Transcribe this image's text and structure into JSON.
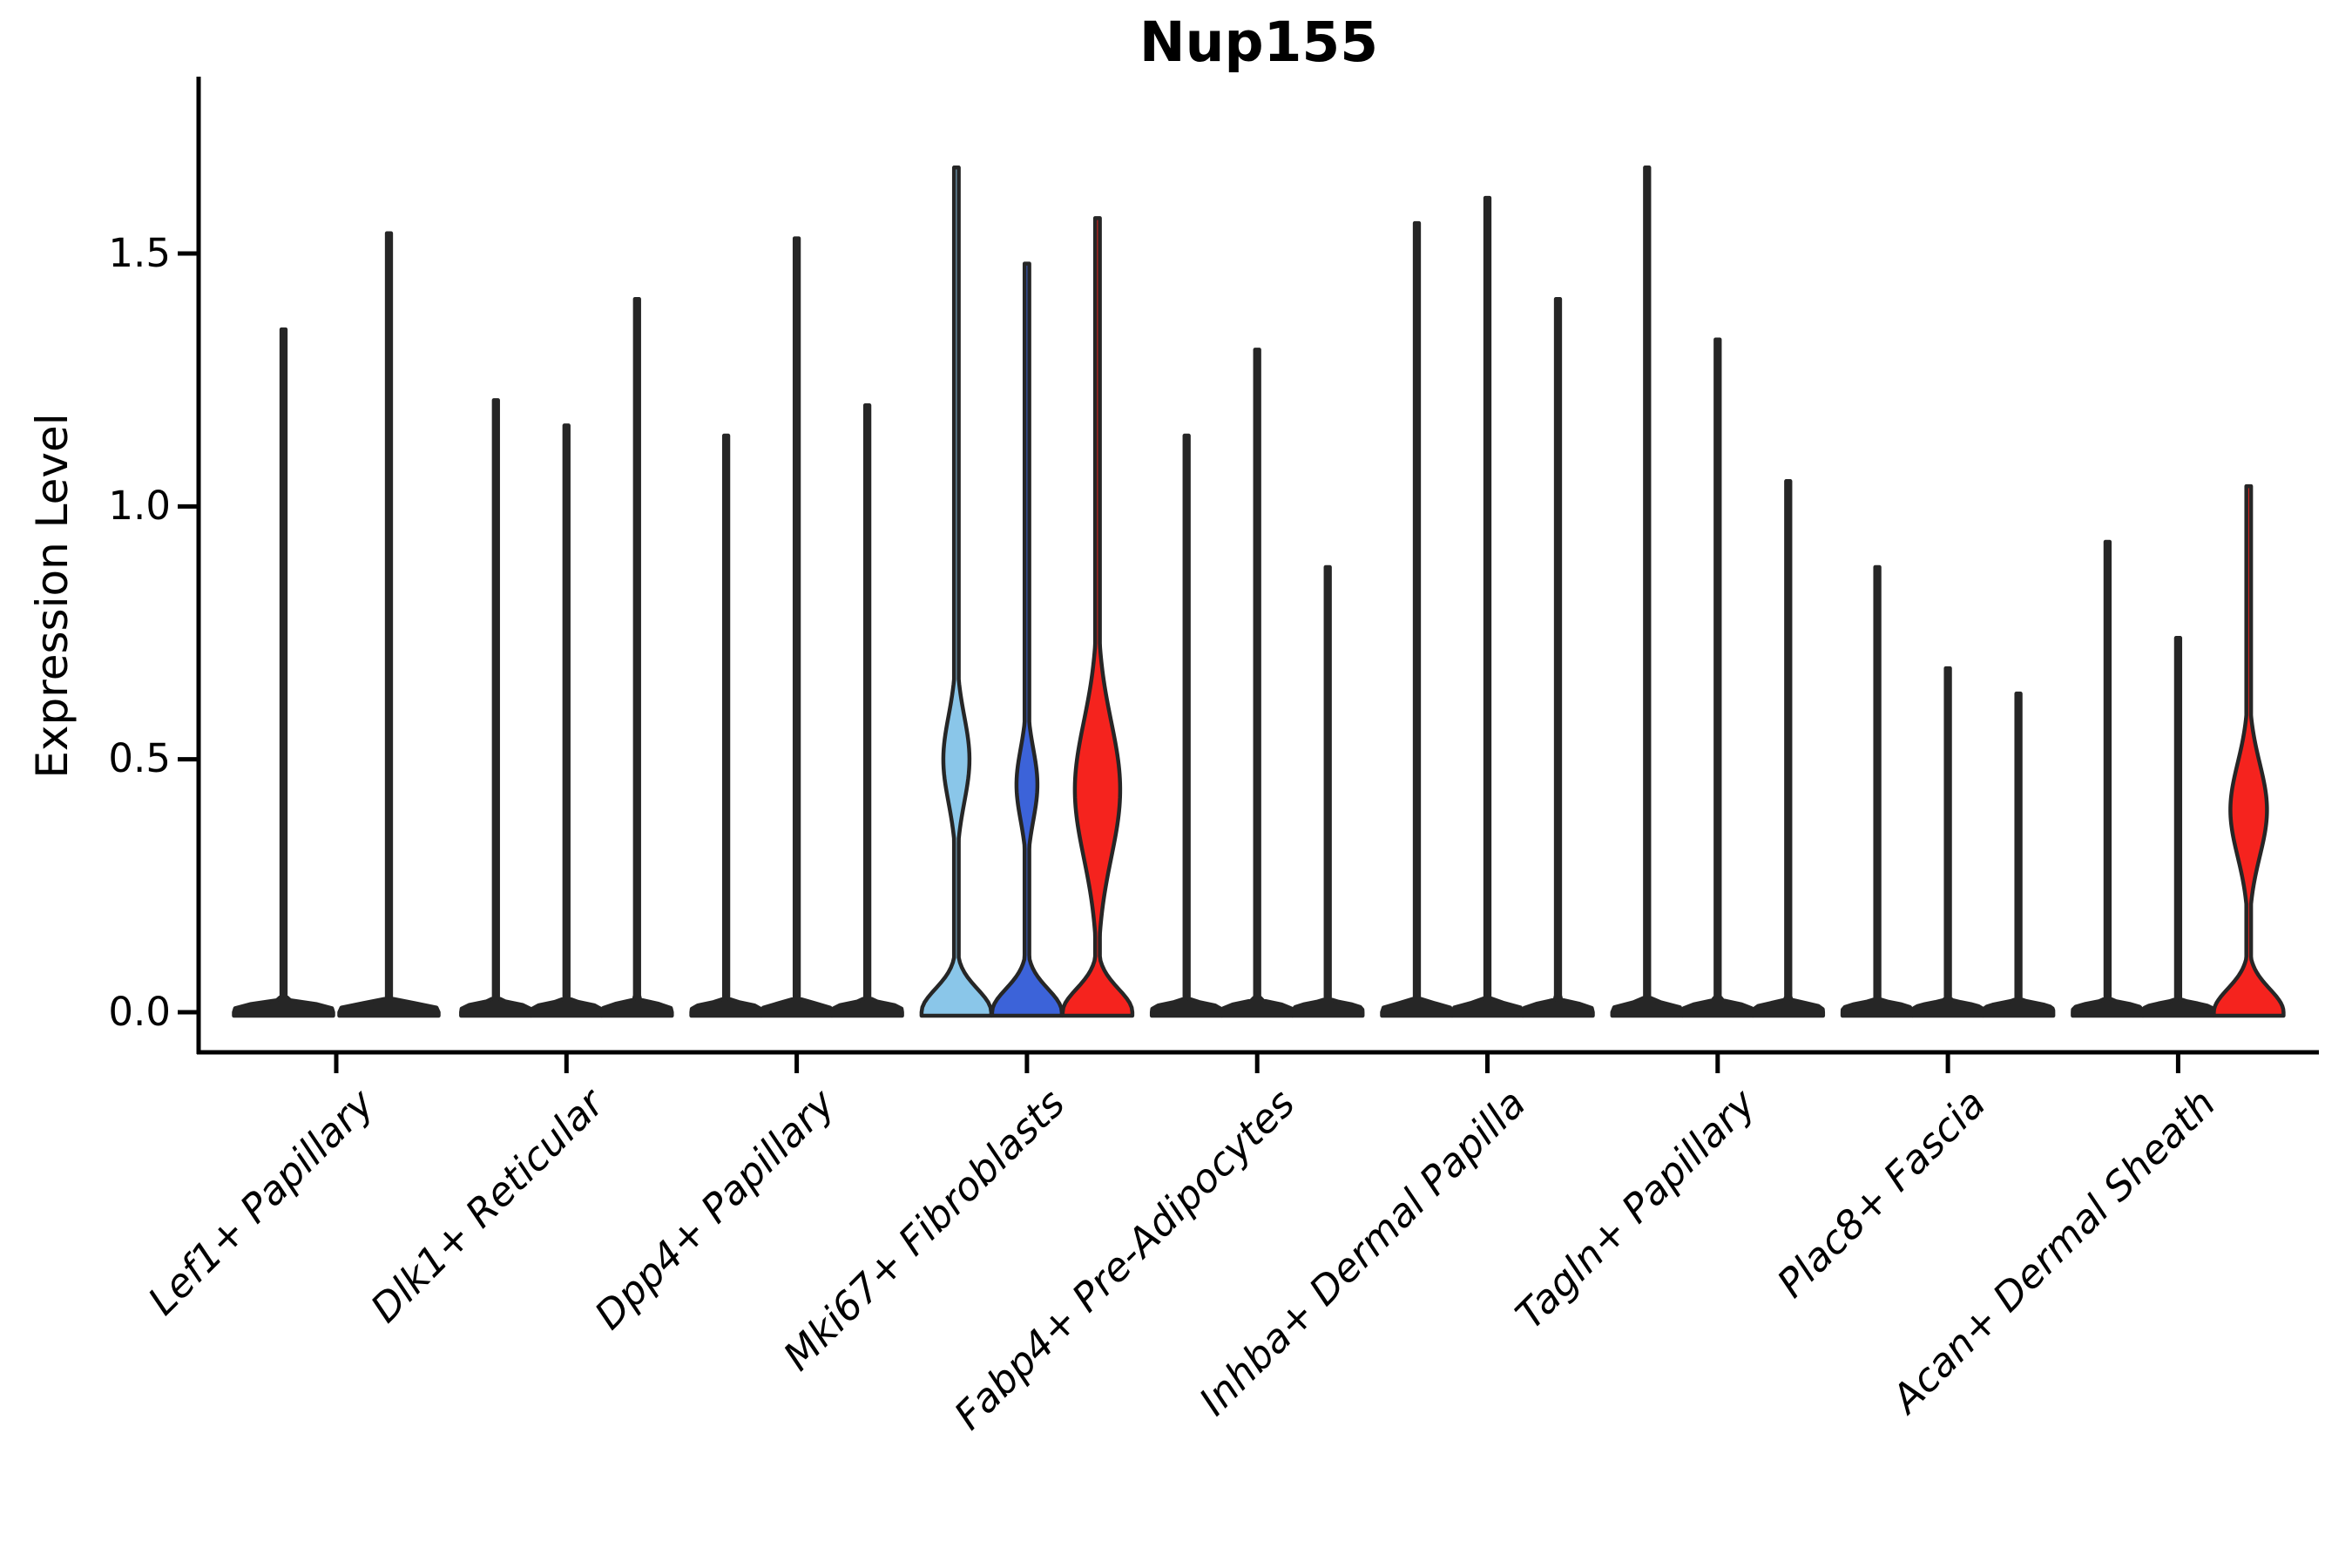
{
  "y_tick_labels": [
    "0.0",
    "0.5",
    "1.0",
    "1.5"
  ],
  "chart_data": {
    "type": "violin",
    "title": "Nup155",
    "ylabel": "Expression Level",
    "ylim": [
      0,
      1.75
    ],
    "yticks": [
      0.0,
      0.5,
      1.0,
      1.5
    ],
    "grid": false,
    "legend": "none",
    "outline_color": "#262626",
    "accent_colors": {
      "light_blue": "#8AC6E9",
      "dark_blue": "#3C63D9",
      "red": "#F5231E"
    },
    "categories": [
      "Lef1+ Papillary",
      "Dlk1+ Reticular",
      "Dpp4+ Papillary",
      "Mki67+ Fibroblasts",
      "Fabp4+ Pre-Adipocytes",
      "Inhba+ Dermal Papilla",
      "Tagln+ Papillary",
      "Plac8+ Fascia",
      "Acan+ Dermal Sheath"
    ],
    "groups": [
      {
        "category": "Lef1+ Papillary",
        "violins": [
          {
            "max": 1.35,
            "fill": null
          },
          {
            "max": 1.54,
            "fill": null
          }
        ]
      },
      {
        "category": "Dlk1+ Reticular",
        "violins": [
          {
            "max": 1.21,
            "fill": null
          },
          {
            "max": 1.16,
            "fill": null
          },
          {
            "max": 1.41,
            "fill": null
          }
        ]
      },
      {
        "category": "Dpp4+ Papillary",
        "violins": [
          {
            "max": 1.14,
            "fill": null
          },
          {
            "max": 1.53,
            "fill": null
          },
          {
            "max": 1.2,
            "fill": null
          }
        ]
      },
      {
        "category": "Mki67+ Fibroblasts",
        "violins": [
          {
            "max": 1.67,
            "fill": "#8AC6E9",
            "bulge": {
              "center": 0.5,
              "sigma": 0.12,
              "halfwidth": 15
            }
          },
          {
            "max": 1.48,
            "fill": "#3C63D9",
            "bulge": {
              "center": 0.45,
              "sigma": 0.1,
              "halfwidth": 12
            }
          },
          {
            "max": 1.57,
            "fill": "#F5231E",
            "bulge": {
              "center": 0.44,
              "sigma": 0.19,
              "halfwidth": 26
            }
          }
        ]
      },
      {
        "category": "Fabp4+ Pre-Adipocytes",
        "violins": [
          {
            "max": 1.14,
            "fill": null
          },
          {
            "max": 1.31,
            "fill": null
          },
          {
            "max": 0.88,
            "fill": null
          }
        ]
      },
      {
        "category": "Inhba+ Dermal Papilla",
        "violins": [
          {
            "max": 1.56,
            "fill": null
          },
          {
            "max": 1.61,
            "fill": null
          },
          {
            "max": 1.41,
            "fill": null
          }
        ]
      },
      {
        "category": "Tagln+ Papillary",
        "violins": [
          {
            "max": 1.67,
            "fill": null
          },
          {
            "max": 1.33,
            "fill": null
          },
          {
            "max": 1.05,
            "fill": null
          }
        ]
      },
      {
        "category": "Plac8+ Fascia",
        "violins": [
          {
            "max": 0.88,
            "fill": null
          },
          {
            "max": 0.68,
            "fill": null
          },
          {
            "max": 0.63,
            "fill": null
          }
        ]
      },
      {
        "category": "Acan+ Dermal Sheath",
        "violins": [
          {
            "max": 0.93,
            "fill": null
          },
          {
            "max": 0.74,
            "fill": null
          },
          {
            "max": 1.04,
            "fill": "#F5231E",
            "bulge": {
              "center": 0.4,
              "sigma": 0.13,
              "halfwidth": 21
            }
          }
        ]
      }
    ]
  }
}
